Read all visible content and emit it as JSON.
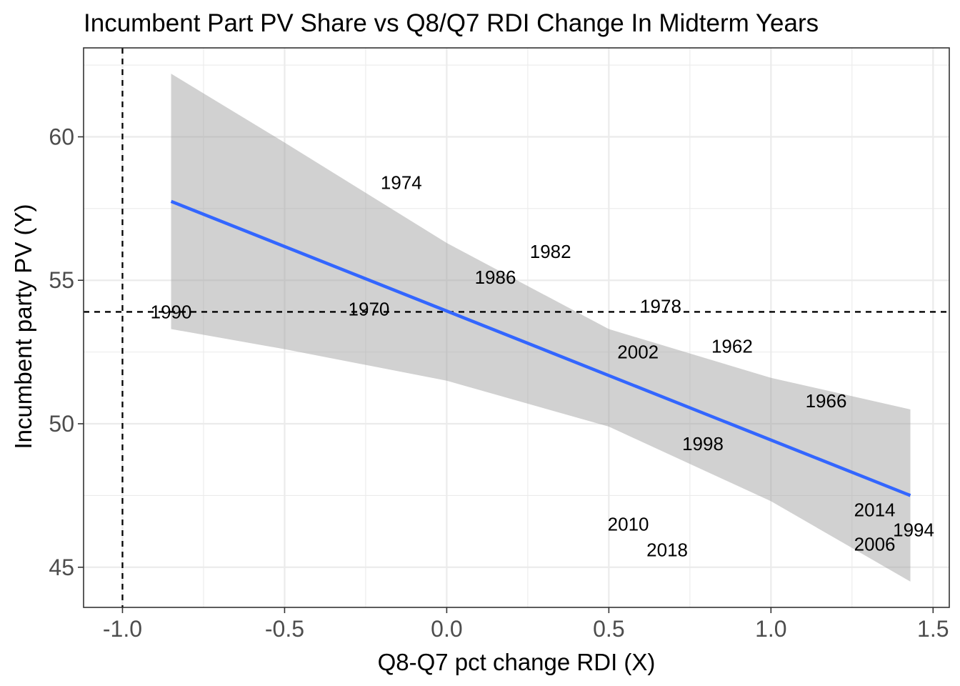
{
  "chart_data": {
    "type": "scatter",
    "title": "Incumbent Part PV Share vs Q8/Q7 RDI Change In Midterm Years",
    "xlabel": "Q8-Q7 pct change RDI (X)",
    "ylabel": "Incumbent party PV (Y)",
    "xlim": [
      -1.12,
      1.55
    ],
    "ylim": [
      43.6,
      63.1
    ],
    "x_ticks": [
      -1.0,
      -0.5,
      0.0,
      0.5,
      1.0,
      1.5
    ],
    "x_tick_labels": [
      "-1.0",
      "-0.5",
      "0.0",
      "0.5",
      "1.0",
      "1.5"
    ],
    "y_ticks": [
      45,
      50,
      55,
      60
    ],
    "y_tick_labels": [
      "45",
      "50",
      "55",
      "60"
    ],
    "grid": true,
    "points": [
      {
        "label": "1990",
        "x": -0.85,
        "y": 53.9
      },
      {
        "label": "1974",
        "x": -0.14,
        "y": 58.4
      },
      {
        "label": "1970",
        "x": -0.24,
        "y": 54.0
      },
      {
        "label": "1982",
        "x": 0.32,
        "y": 56.0
      },
      {
        "label": "1986",
        "x": 0.15,
        "y": 55.1
      },
      {
        "label": "1978",
        "x": 0.66,
        "y": 54.1
      },
      {
        "label": "2002",
        "x": 0.59,
        "y": 52.5
      },
      {
        "label": "1962",
        "x": 0.88,
        "y": 52.7
      },
      {
        "label": "1966",
        "x": 1.17,
        "y": 50.8
      },
      {
        "label": "1998",
        "x": 0.79,
        "y": 49.3
      },
      {
        "label": "2010",
        "x": 0.56,
        "y": 46.5
      },
      {
        "label": "2018",
        "x": 0.68,
        "y": 45.6
      },
      {
        "label": "2014",
        "x": 1.32,
        "y": 47.0
      },
      {
        "label": "1994",
        "x": 1.44,
        "y": 46.3
      },
      {
        "label": "2006",
        "x": 1.32,
        "y": 45.8
      }
    ],
    "fit": {
      "x": [
        -0.85,
        1.43
      ],
      "y": [
        57.75,
        47.5
      ]
    },
    "confidence_band": {
      "x": [
        -0.85,
        -0.5,
        0.0,
        0.5,
        1.0,
        1.43
      ],
      "upper": [
        62.2,
        59.8,
        56.3,
        53.3,
        51.6,
        50.5
      ],
      "lower": [
        53.3,
        52.6,
        51.5,
        49.9,
        47.3,
        44.5
      ]
    },
    "reference_lines": {
      "vertical_x": -1.0,
      "horizontal_y": 53.9
    },
    "colors": {
      "fit_line": "#3366ff",
      "band": "#999999",
      "grid": "#ebebeb",
      "panel_border": "#333333",
      "reference": "#000000",
      "labels": "#000000"
    }
  }
}
